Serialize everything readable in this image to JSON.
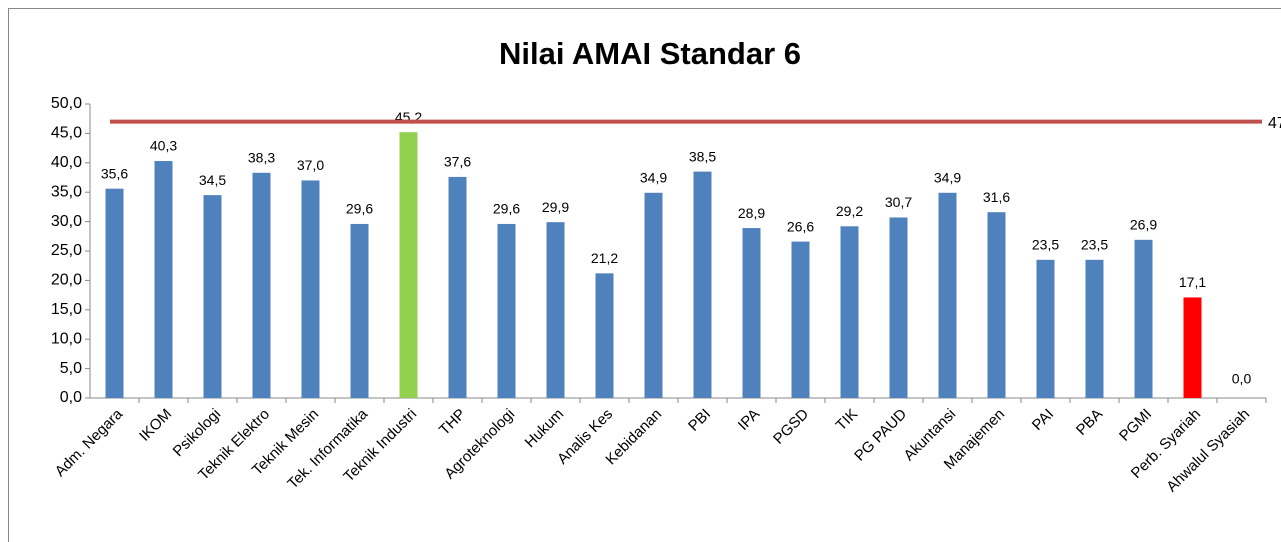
{
  "chart_data": {
    "type": "bar",
    "title": "Nilai AMAI Standar 6",
    "categories": [
      "Adm. Negara",
      "IKOM",
      "Psikologi",
      "Teknik Elektro",
      "Teknik Mesin",
      "Tek. Informatika",
      "Teknik Industri",
      "THP",
      "Agroteknologi",
      "Hukum",
      "Analis Kes",
      "Kebidanan",
      "PBI",
      "IPA",
      "PGSD",
      "TIK",
      "PG PAUD",
      "Akuntansi",
      "Manajemen",
      "PAI",
      "PBA",
      "PGMI",
      "Perb. Syariah",
      "Ahwalul Syasiah"
    ],
    "values": [
      35.6,
      40.3,
      34.5,
      38.3,
      37.0,
      29.6,
      45.2,
      37.6,
      29.6,
      29.9,
      21.2,
      34.9,
      38.5,
      28.9,
      26.6,
      29.2,
      30.7,
      34.9,
      31.6,
      23.5,
      23.5,
      26.9,
      17.1,
      0.0
    ],
    "value_labels": [
      "35,6",
      "40,3",
      "34,5",
      "38,3",
      "37,0",
      "29,6",
      "45,2",
      "37,6",
      "29,6",
      "29,9",
      "21,2",
      "34,9",
      "38,5",
      "28,9",
      "26,6",
      "29,2",
      "30,7",
      "34,9",
      "31,6",
      "23,5",
      "23,5",
      "26,9",
      "17,1",
      "0,0"
    ],
    "colors": [
      "#4f81bd",
      "#4f81bd",
      "#4f81bd",
      "#4f81bd",
      "#4f81bd",
      "#4f81bd",
      "#92d050",
      "#4f81bd",
      "#4f81bd",
      "#4f81bd",
      "#4f81bd",
      "#4f81bd",
      "#4f81bd",
      "#4f81bd",
      "#4f81bd",
      "#4f81bd",
      "#4f81bd",
      "#4f81bd",
      "#4f81bd",
      "#4f81bd",
      "#4f81bd",
      "#4f81bd",
      "#ff0000",
      "#4f81bd"
    ],
    "reference_line": {
      "value": 47,
      "color": "#c0504d"
    },
    "ylim": [
      0,
      50
    ],
    "yticks": [
      {
        "value": 0,
        "label": "0,0"
      },
      {
        "value": 5,
        "label": "5,0"
      },
      {
        "value": 10,
        "label": "10,0"
      },
      {
        "value": 15,
        "label": "15,0"
      },
      {
        "value": 20,
        "label": "20,0"
      },
      {
        "value": 25,
        "label": "25,0"
      },
      {
        "value": 30,
        "label": "30,0"
      },
      {
        "value": 35,
        "label": "35,0"
      },
      {
        "value": 40,
        "label": "40,0"
      },
      {
        "value": 45,
        "label": "45,0"
      },
      {
        "value": 50,
        "label": "50,0"
      }
    ],
    "grid": false
  }
}
